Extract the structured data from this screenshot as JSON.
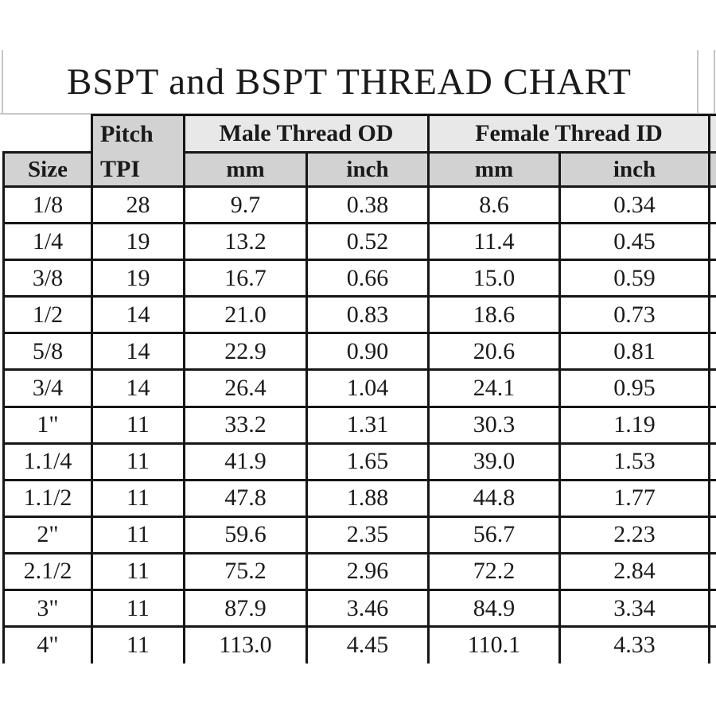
{
  "title": "BSPT and BSPT THREAD CHART",
  "colors": {
    "background": "#ffffff",
    "text": "#1a1a1a",
    "border": "#161616",
    "group_header_bg": "#e8e8e8",
    "subheader_bg": "#d2d2d2",
    "gridline": "#c6c6c6"
  },
  "table": {
    "size_header": "Size",
    "pitch_header": {
      "line1": "Pitch",
      "line2": "TPI"
    },
    "groups": [
      {
        "label": "Male Thread OD",
        "subcols": [
          "mm",
          "inch"
        ]
      },
      {
        "label": "Female Thread ID",
        "subcols": [
          "mm",
          "inch"
        ]
      }
    ],
    "rows": [
      {
        "size": "1/8",
        "tpi": "28",
        "male_mm": "9.7",
        "male_inch": "0.38",
        "female_mm": "8.6",
        "female_inch": "0.34"
      },
      {
        "size": "1/4",
        "tpi": "19",
        "male_mm": "13.2",
        "male_inch": "0.52",
        "female_mm": "11.4",
        "female_inch": "0.45"
      },
      {
        "size": "3/8",
        "tpi": "19",
        "male_mm": "16.7",
        "male_inch": "0.66",
        "female_mm": "15.0",
        "female_inch": "0.59"
      },
      {
        "size": "1/2",
        "tpi": "14",
        "male_mm": "21.0",
        "male_inch": "0.83",
        "female_mm": "18.6",
        "female_inch": "0.73"
      },
      {
        "size": "5/8",
        "tpi": "14",
        "male_mm": "22.9",
        "male_inch": "0.90",
        "female_mm": "20.6",
        "female_inch": "0.81"
      },
      {
        "size": "3/4",
        "tpi": "14",
        "male_mm": "26.4",
        "male_inch": "1.04",
        "female_mm": "24.1",
        "female_inch": "0.95"
      },
      {
        "size": "1\"",
        "tpi": "11",
        "male_mm": "33.2",
        "male_inch": "1.31",
        "female_mm": "30.3",
        "female_inch": "1.19"
      },
      {
        "size": "1.1/4",
        "tpi": "11",
        "male_mm": "41.9",
        "male_inch": "1.65",
        "female_mm": "39.0",
        "female_inch": "1.53"
      },
      {
        "size": "1.1/2",
        "tpi": "11",
        "male_mm": "47.8",
        "male_inch": "1.88",
        "female_mm": "44.8",
        "female_inch": "1.77"
      },
      {
        "size": "2\"",
        "tpi": "11",
        "male_mm": "59.6",
        "male_inch": "2.35",
        "female_mm": "56.7",
        "female_inch": "2.23"
      },
      {
        "size": "2.1/2",
        "tpi": "11",
        "male_mm": "75.2",
        "male_inch": "2.96",
        "female_mm": "72.2",
        "female_inch": "2.84"
      },
      {
        "size": "3\"",
        "tpi": "11",
        "male_mm": "87.9",
        "male_inch": "3.46",
        "female_mm": "84.9",
        "female_inch": "3.34"
      },
      {
        "size": "4\"",
        "tpi": "11",
        "male_mm": "113.0",
        "male_inch": "4.45",
        "female_mm": "110.1",
        "female_inch": "4.33"
      }
    ]
  },
  "chart_data": {
    "type": "table",
    "title": "BSPT and BSPT THREAD CHART",
    "columns": [
      "Size",
      "Pitch TPI",
      "Male Thread OD mm",
      "Male Thread OD inch",
      "Female Thread ID mm",
      "Female Thread ID inch"
    ],
    "rows": [
      [
        "1/8",
        "28",
        "9.7",
        "0.38",
        "8.6",
        "0.34"
      ],
      [
        "1/4",
        "19",
        "13.2",
        "0.52",
        "11.4",
        "0.45"
      ],
      [
        "3/8",
        "19",
        "16.7",
        "0.66",
        "15.0",
        "0.59"
      ],
      [
        "1/2",
        "14",
        "21.0",
        "0.83",
        "18.6",
        "0.73"
      ],
      [
        "5/8",
        "14",
        "22.9",
        "0.90",
        "20.6",
        "0.81"
      ],
      [
        "3/4",
        "14",
        "26.4",
        "1.04",
        "24.1",
        "0.95"
      ],
      [
        "1\"",
        "11",
        "33.2",
        "1.31",
        "30.3",
        "1.19"
      ],
      [
        "1.1/4",
        "11",
        "41.9",
        "1.65",
        "39.0",
        "1.53"
      ],
      [
        "1.1/2",
        "11",
        "47.8",
        "1.88",
        "44.8",
        "1.77"
      ],
      [
        "2\"",
        "11",
        "59.6",
        "2.35",
        "56.7",
        "2.23"
      ],
      [
        "2.1/2",
        "11",
        "75.2",
        "2.96",
        "72.2",
        "2.84"
      ],
      [
        "3\"",
        "11",
        "87.9",
        "3.46",
        "84.9",
        "3.34"
      ],
      [
        "4\"",
        "11",
        "113.0",
        "4.45",
        "110.1",
        "4.33"
      ]
    ]
  }
}
